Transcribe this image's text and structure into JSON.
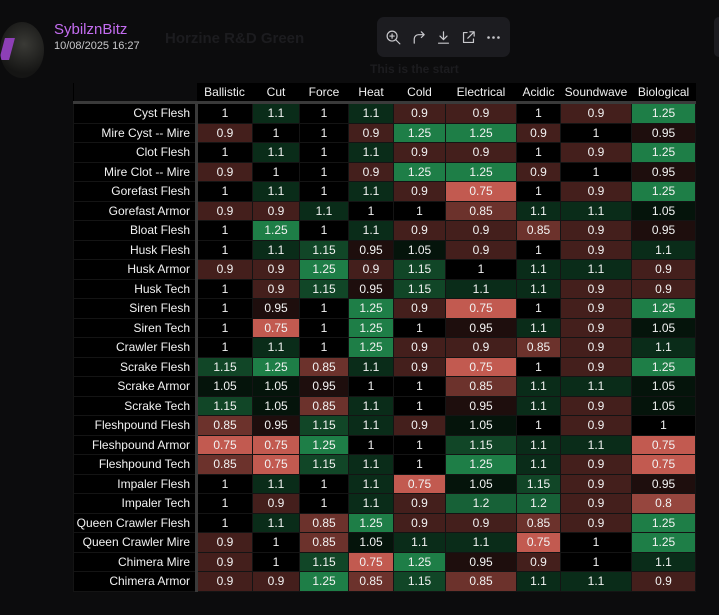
{
  "background": {
    "channel_name": "Horzine R&D Green",
    "subtitle": "This is the start"
  },
  "message": {
    "username": "SybilznBitz",
    "timestamp": "10/08/2025 16:27"
  },
  "toolbar": {
    "icons": [
      "zoom-in-icon",
      "forward-icon",
      "download-icon",
      "open-external-icon",
      "more-icon"
    ]
  },
  "colors": {
    "username": "#c46df0",
    "high": "#1e7e47",
    "neutral": "#000000",
    "low": "#c25a50"
  },
  "chart_data": {
    "type": "heatmap",
    "columns": [
      "Ballistic",
      "Cut",
      "Force",
      "Heat",
      "Cold",
      "Electrical",
      "Acidic",
      "Soundwave",
      "Biological"
    ],
    "rows": [
      {
        "label": "Cyst Flesh",
        "values": [
          "1",
          "1.1",
          "1",
          "1.1",
          "0.9",
          "0.9",
          "1",
          "0.9",
          "1.25"
        ]
      },
      {
        "label": "Mire Cyst -- Mire",
        "values": [
          "0.9",
          "1",
          "1",
          "0.9",
          "1.25",
          "1.25",
          "0.9",
          "1",
          "0.95"
        ]
      },
      {
        "label": "Clot Flesh",
        "values": [
          "1",
          "1.1",
          "1",
          "1.1",
          "0.9",
          "0.9",
          "1",
          "0.9",
          "1.25"
        ]
      },
      {
        "label": "Mire Clot -- Mire",
        "values": [
          "0.9",
          "1",
          "1",
          "0.9",
          "1.25",
          "1.25",
          "0.9",
          "1",
          "0.95"
        ]
      },
      {
        "label": "Gorefast Flesh",
        "values": [
          "1",
          "1.1",
          "1",
          "1.1",
          "0.9",
          "0.75",
          "1",
          "0.9",
          "1.25"
        ]
      },
      {
        "label": "Gorefast Armor",
        "values": [
          "0.9",
          "0.9",
          "1.1",
          "1",
          "1",
          "0.85",
          "1.1",
          "1.1",
          "1.05"
        ]
      },
      {
        "label": "Bloat Flesh",
        "values": [
          "1",
          "1.25",
          "1",
          "1.1",
          "0.9",
          "0.9",
          "0.85",
          "0.9",
          "0.95"
        ]
      },
      {
        "label": "Husk Flesh",
        "values": [
          "1",
          "1.1",
          "1.15",
          "0.95",
          "1.05",
          "0.9",
          "1",
          "0.9",
          "1.1"
        ]
      },
      {
        "label": "Husk Armor",
        "values": [
          "0.9",
          "0.9",
          "1.25",
          "0.9",
          "1.15",
          "1",
          "1.1",
          "1.1",
          "0.9"
        ]
      },
      {
        "label": "Husk Tech",
        "values": [
          "1",
          "0.9",
          "1.15",
          "0.95",
          "1.15",
          "1.1",
          "1.1",
          "0.9",
          "0.9"
        ]
      },
      {
        "label": "Siren Flesh",
        "values": [
          "1",
          "0.95",
          "1",
          "1.25",
          "0.9",
          "0.75",
          "1",
          "0.9",
          "1.25"
        ]
      },
      {
        "label": "Siren Tech",
        "values": [
          "1",
          "0.75",
          "1",
          "1.25",
          "1",
          "0.95",
          "1.1",
          "0.9",
          "1.05"
        ]
      },
      {
        "label": "Crawler Flesh",
        "values": [
          "1",
          "1.1",
          "1",
          "1.25",
          "0.9",
          "0.9",
          "0.85",
          "0.9",
          "1.1"
        ]
      },
      {
        "label": "Scrake Flesh",
        "values": [
          "1.15",
          "1.25",
          "0.85",
          "1.1",
          "0.9",
          "0.75",
          "1",
          "0.9",
          "1.25"
        ]
      },
      {
        "label": "Scrake Armor",
        "values": [
          "1.05",
          "1.05",
          "0.95",
          "1",
          "1",
          "0.85",
          "1.1",
          "1.1",
          "1.05"
        ]
      },
      {
        "label": "Scrake Tech",
        "values": [
          "1.15",
          "1.05",
          "0.85",
          "1.1",
          "1",
          "0.95",
          "1.1",
          "0.9",
          "1.05"
        ]
      },
      {
        "label": "Fleshpound Flesh",
        "values": [
          "0.85",
          "0.95",
          "1.15",
          "1.1",
          "0.9",
          "1.05",
          "1",
          "0.9",
          "1"
        ]
      },
      {
        "label": "Fleshpound Armor",
        "values": [
          "0.75",
          "0.75",
          "1.25",
          "1",
          "1",
          "1.15",
          "1.1",
          "1.1",
          "0.75"
        ]
      },
      {
        "label": "Fleshpound Tech",
        "values": [
          "0.85",
          "0.75",
          "1.15",
          "1.1",
          "1",
          "1.25",
          "1.1",
          "0.9",
          "0.75"
        ]
      },
      {
        "label": "Impaler Flesh",
        "values": [
          "1",
          "1.1",
          "1",
          "1.1",
          "0.75",
          "1.05",
          "1.15",
          "0.9",
          "0.95"
        ]
      },
      {
        "label": "Impaler Tech",
        "values": [
          "1",
          "0.9",
          "1",
          "1.1",
          "0.9",
          "1.2",
          "1.2",
          "0.9",
          "0.8"
        ]
      },
      {
        "label": "Queen Crawler Flesh",
        "values": [
          "1",
          "1.1",
          "0.85",
          "1.25",
          "0.9",
          "0.9",
          "0.85",
          "0.9",
          "1.25"
        ]
      },
      {
        "label": "Queen Crawler Mire",
        "values": [
          "0.9",
          "1",
          "0.85",
          "1.05",
          "1.1",
          "1.1",
          "0.75",
          "1",
          "1.25"
        ]
      },
      {
        "label": "Chimera Mire",
        "values": [
          "0.9",
          "1",
          "1.15",
          "0.75",
          "1.25",
          "0.95",
          "0.9",
          "1",
          "1.1"
        ]
      },
      {
        "label": "Chimera Armor",
        "values": [
          "0.9",
          "0.9",
          "1.25",
          "0.85",
          "1.15",
          "0.85",
          "1.1",
          "1.1",
          "0.9"
        ]
      }
    ],
    "scale": {
      "min": 0.75,
      "mid": 1,
      "max": 1.25
    }
  }
}
